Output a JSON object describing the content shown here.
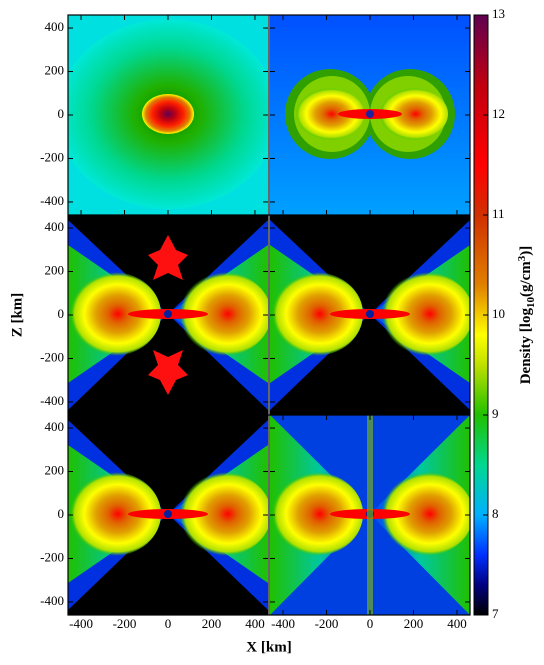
{
  "chart_data": {
    "type": "heatmap-panels",
    "xlabel": "X [km]",
    "ylabel": "Z [km]",
    "xlim": [
      -460,
      460
    ],
    "ylim": [
      -460,
      460
    ],
    "xticks": [
      -400,
      -200,
      0,
      200,
      400
    ],
    "yticks": [
      -400,
      -200,
      0,
      200,
      400
    ],
    "clim": [
      7,
      13
    ],
    "cticks": [
      7,
      8,
      9,
      10,
      11,
      12,
      13
    ],
    "colorbar_label": [
      "Density [log",
      "10",
      "(g/cm",
      "3",
      ")]"
    ],
    "colormap": [
      {
        "value": 7,
        "color": "#000000"
      },
      {
        "value": 7.3,
        "color": "#000080"
      },
      {
        "value": 7.6,
        "color": "#0030ff"
      },
      {
        "value": 8,
        "color": "#00b0ff"
      },
      {
        "value": 8.5,
        "color": "#00d890"
      },
      {
        "value": 9,
        "color": "#20c000"
      },
      {
        "value": 9.5,
        "color": "#c0e000"
      },
      {
        "value": 9.8,
        "color": "#ffff00"
      },
      {
        "value": 10.3,
        "color": "#e08000"
      },
      {
        "value": 11,
        "color": "#d03000"
      },
      {
        "value": 11.5,
        "color": "#ff0000"
      },
      {
        "value": 12.3,
        "color": "#c00010"
      },
      {
        "value": 13,
        "color": "#600050"
      }
    ]
  }
}
